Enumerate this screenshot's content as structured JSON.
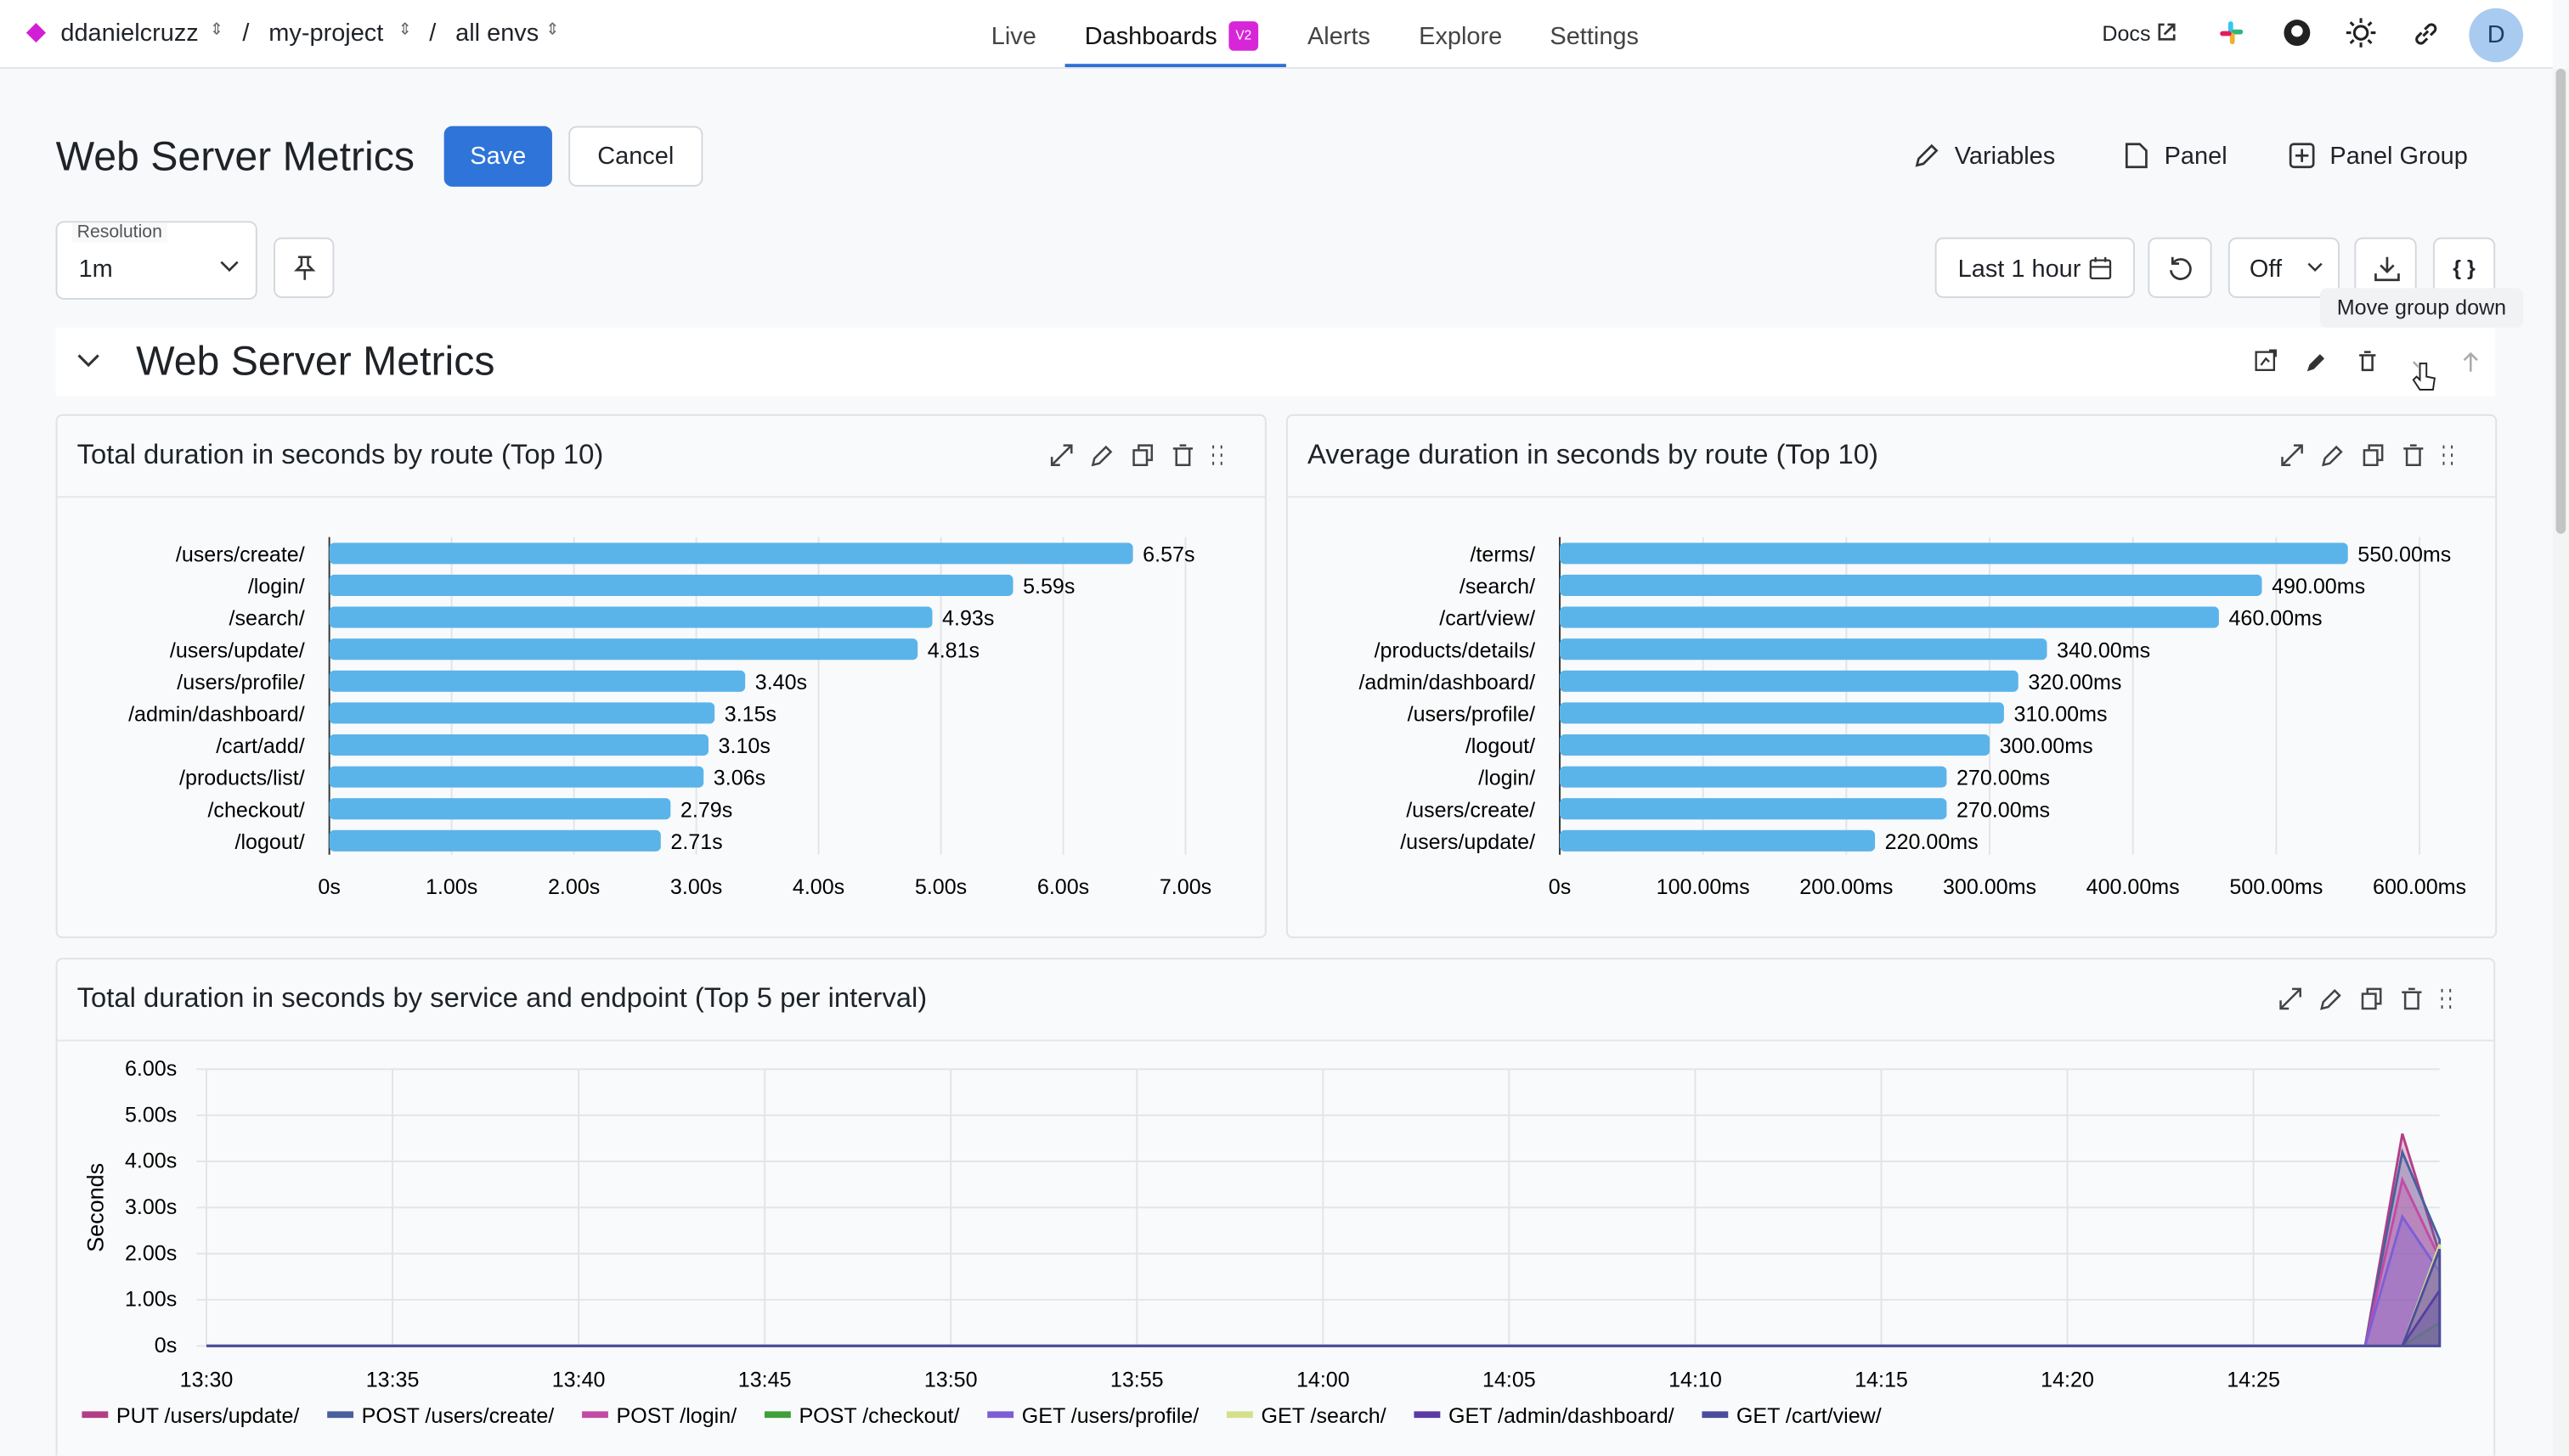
{
  "nav": {
    "org": "ddanielcruzz",
    "separator": "/",
    "project": "my-project",
    "env": "all envs",
    "tabs": [
      "Live",
      "Dashboards",
      "Alerts",
      "Explore",
      "Settings"
    ],
    "badge": "V2",
    "docs": "Docs",
    "avatar": "D"
  },
  "header": {
    "title": "Web Server Metrics",
    "save": "Save",
    "cancel": "Cancel",
    "actions": [
      "Variables",
      "Panel",
      "Panel Group"
    ]
  },
  "controls": {
    "resolution_label": "Resolution",
    "resolution": "1m",
    "time_range": "Last 1 hour",
    "refresh": "Off",
    "json_button": "{ }",
    "tooltip": "Move group down"
  },
  "group": {
    "title": "Web Server Metrics"
  },
  "chart_data": [
    {
      "type": "bar",
      "orientation": "horizontal",
      "title": "Total duration in seconds by route (Top 10)",
      "categories": [
        "/users/create/",
        "/login/",
        "/search/",
        "/users/update/",
        "/users/profile/",
        "/admin/dashboard/",
        "/cart/add/",
        "/products/list/",
        "/checkout/",
        "/logout/"
      ],
      "values": [
        6.57,
        5.59,
        4.93,
        4.81,
        3.4,
        3.15,
        3.1,
        3.06,
        2.79,
        2.71
      ],
      "value_labels": [
        "6.57s",
        "5.59s",
        "4.93s",
        "4.81s",
        "3.40s",
        "3.15s",
        "3.10s",
        "3.06s",
        "2.79s",
        "2.71s"
      ],
      "color": "#5bb4e9",
      "xlim": [
        0,
        7.3
      ],
      "xticks": [
        {
          "value": 0,
          "label": "0s"
        },
        {
          "value": 1,
          "label": "1.00s"
        },
        {
          "value": 2,
          "label": "2.00s"
        },
        {
          "value": 3,
          "label": "3.00s"
        },
        {
          "value": 4,
          "label": "4.00s"
        },
        {
          "value": 5,
          "label": "5.00s"
        },
        {
          "value": 6,
          "label": "6.00s"
        },
        {
          "value": 7,
          "label": "7.00s"
        }
      ],
      "grid": true
    },
    {
      "type": "bar",
      "orientation": "horizontal",
      "title": "Average duration in seconds by route (Top 10)",
      "categories": [
        "/terms/",
        "/search/",
        "/cart/view/",
        "/products/details/",
        "/admin/dashboard/",
        "/users/profile/",
        "/logout/",
        "/login/",
        "/users/create/",
        "/users/update/"
      ],
      "values": [
        550,
        490,
        460,
        340,
        320,
        310,
        300,
        270,
        270,
        220
      ],
      "value_labels": [
        "550.00ms",
        "490.00ms",
        "460.00ms",
        "340.00ms",
        "320.00ms",
        "310.00ms",
        "300.00ms",
        "270.00ms",
        "270.00ms",
        "220.00ms"
      ],
      "color": "#5bb4e9",
      "xlim": [
        0,
        630
      ],
      "xticks": [
        {
          "value": 0,
          "label": "0s"
        },
        {
          "value": 100,
          "label": "100.00ms"
        },
        {
          "value": 200,
          "label": "200.00ms"
        },
        {
          "value": 300,
          "label": "300.00ms"
        },
        {
          "value": 400,
          "label": "400.00ms"
        },
        {
          "value": 500,
          "label": "500.00ms"
        },
        {
          "value": 600,
          "label": "600.00ms"
        }
      ],
      "grid": true
    },
    {
      "type": "area",
      "title": "Total duration in seconds by service and endpoint (Top 5 per interval)",
      "y_label": "Seconds",
      "x": [
        "13:30",
        "14:28",
        "14:29",
        "14:30"
      ],
      "series": [
        {
          "name": "PUT /users/update/",
          "color": "#b23f86",
          "values": [
            0,
            0,
            4.6,
            2.0
          ]
        },
        {
          "name": "POST /users/create/",
          "color": "#4a5f9e",
          "values": [
            0,
            0,
            4.2,
            2.3
          ]
        },
        {
          "name": "POST /login/",
          "color": "#c34aa5",
          "values": [
            0,
            0,
            3.6,
            1.9
          ]
        },
        {
          "name": "POST /checkout/",
          "color": "#3f9f3a",
          "values": [
            0,
            0,
            0,
            0.5
          ]
        },
        {
          "name": "GET /users/profile/",
          "color": "#7c5fd6",
          "values": [
            0,
            0,
            2.8,
            1.6
          ]
        },
        {
          "name": "GET /search/",
          "color": "#d6df8c",
          "values": [
            0,
            0,
            0,
            2.2
          ]
        },
        {
          "name": "GET /admin/dashboard/",
          "color": "#5b3aa3",
          "values": [
            0,
            0,
            0,
            1.2
          ]
        },
        {
          "name": "GET /cart/view/",
          "color": "#4b4d9c",
          "values": [
            0,
            0,
            0,
            2.1
          ]
        }
      ],
      "xlim": [
        "13:30",
        "14:30"
      ],
      "xticks": [
        "13:30",
        "13:35",
        "13:40",
        "13:45",
        "13:50",
        "13:55",
        "14:00",
        "14:05",
        "14:10",
        "14:15",
        "14:20",
        "14:25"
      ],
      "ylim": [
        0,
        6
      ],
      "yticks": [
        {
          "value": 0,
          "label": "0s"
        },
        {
          "value": 1,
          "label": "1.00s"
        },
        {
          "value": 2,
          "label": "2.00s"
        },
        {
          "value": 3,
          "label": "3.00s"
        },
        {
          "value": 4,
          "label": "4.00s"
        },
        {
          "value": 5,
          "label": "5.00s"
        },
        {
          "value": 6,
          "label": "6.00s"
        }
      ],
      "grid": true
    }
  ]
}
